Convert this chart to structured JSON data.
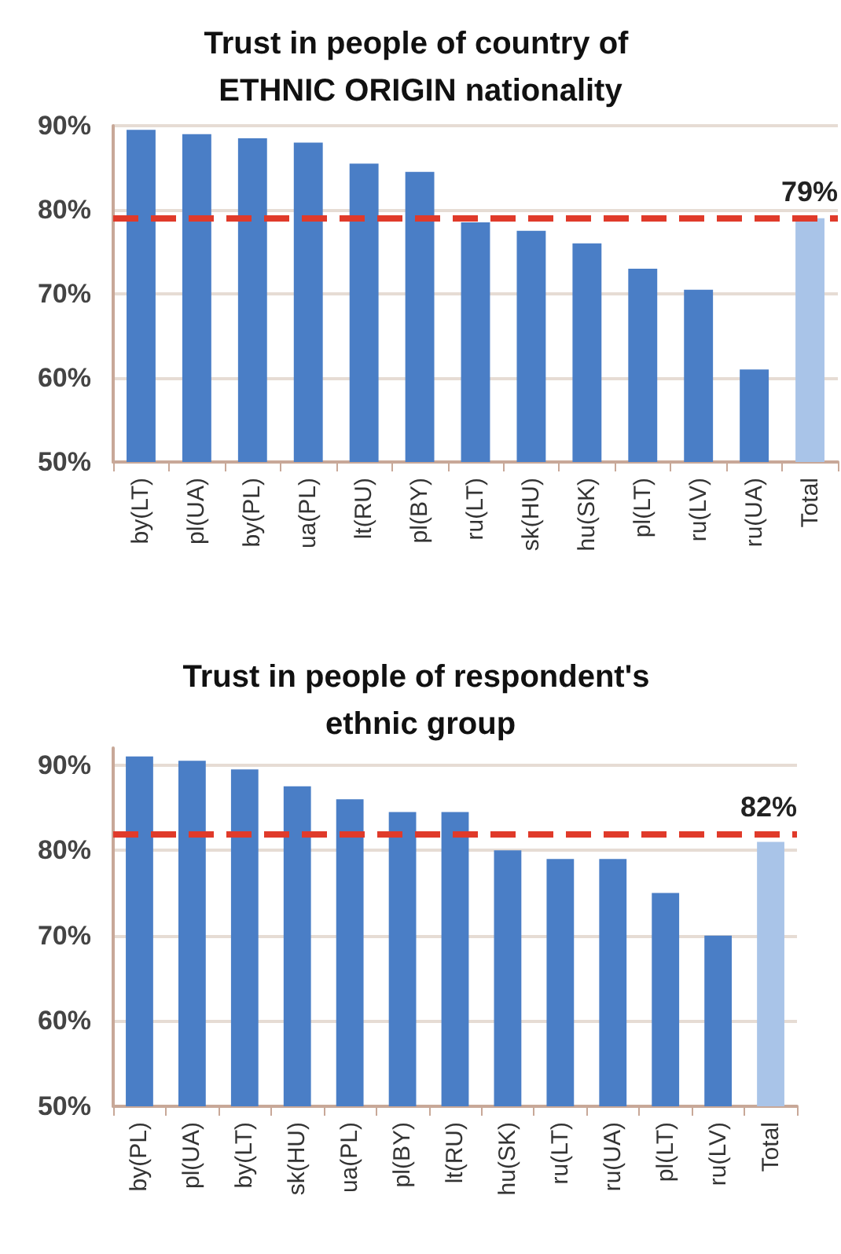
{
  "chart_data": [
    {
      "type": "bar",
      "title": "Trust in people of country of ETHNIC ORIGIN nationality",
      "categories": [
        "by(LT)",
        "pl(UA)",
        "by(PL)",
        "ua(PL)",
        "lt(RU)",
        "pl(BY)",
        "ru(LT)",
        "sk(HU)",
        "hu(SK)",
        "pl(LT)",
        "ru(LV)",
        "ru(UA)",
        "Total"
      ],
      "values": [
        89.5,
        89,
        88.5,
        88,
        85.5,
        84.5,
        78.5,
        77.5,
        76,
        73,
        70.5,
        61,
        79
      ],
      "colors": [
        "#4a7ec6",
        "#4a7ec6",
        "#4a7ec6",
        "#4a7ec6",
        "#4a7ec6",
        "#4a7ec6",
        "#4a7ec6",
        "#4a7ec6",
        "#4a7ec6",
        "#4a7ec6",
        "#4a7ec6",
        "#4a7ec6",
        "#a9c4e8"
      ],
      "ylim": [
        50,
        90
      ],
      "yticks": [
        {
          "value": 50,
          "label": "50%"
        },
        {
          "value": 60,
          "label": "60%"
        },
        {
          "value": 70,
          "label": "70%"
        },
        {
          "value": 80,
          "label": "80%"
        },
        {
          "value": 90,
          "label": "90%"
        }
      ],
      "grid": "y",
      "ref_lines": [
        {
          "axis": "y",
          "value": 79,
          "label": "79%",
          "color": "#e03a2a",
          "line_style": "dashed"
        }
      ]
    },
    {
      "type": "bar",
      "title": "Trust in people of respondent's ethnic group",
      "categories": [
        "by(PL)",
        "pl(UA)",
        "by(LT)",
        "sk(HU)",
        "ua(PL)",
        "pl(BY)",
        "lt(RU)",
        "hu(SK)",
        "ru(LT)",
        "ru(UA)",
        "pl(LT)",
        "ru(LV)",
        "Total"
      ],
      "values": [
        91,
        90.5,
        89.5,
        87.5,
        86,
        84.5,
        84.5,
        80,
        79,
        79,
        75,
        70,
        81
      ],
      "colors": [
        "#4a7ec6",
        "#4a7ec6",
        "#4a7ec6",
        "#4a7ec6",
        "#4a7ec6",
        "#4a7ec6",
        "#4a7ec6",
        "#4a7ec6",
        "#4a7ec6",
        "#4a7ec6",
        "#4a7ec6",
        "#4a7ec6",
        "#a9c4e8"
      ],
      "ylim": [
        50,
        92
      ],
      "yticks": [
        {
          "value": 50,
          "label": "50%"
        },
        {
          "value": 60,
          "label": "60%"
        },
        {
          "value": 70,
          "label": "70%"
        },
        {
          "value": 80,
          "label": "80%"
        },
        {
          "value": 90,
          "label": "90%"
        }
      ],
      "grid": "y",
      "ref_lines": [
        {
          "axis": "y",
          "value": 82,
          "label": "82%",
          "color": "#e03a2a",
          "line_style": "dashed"
        }
      ]
    }
  ]
}
